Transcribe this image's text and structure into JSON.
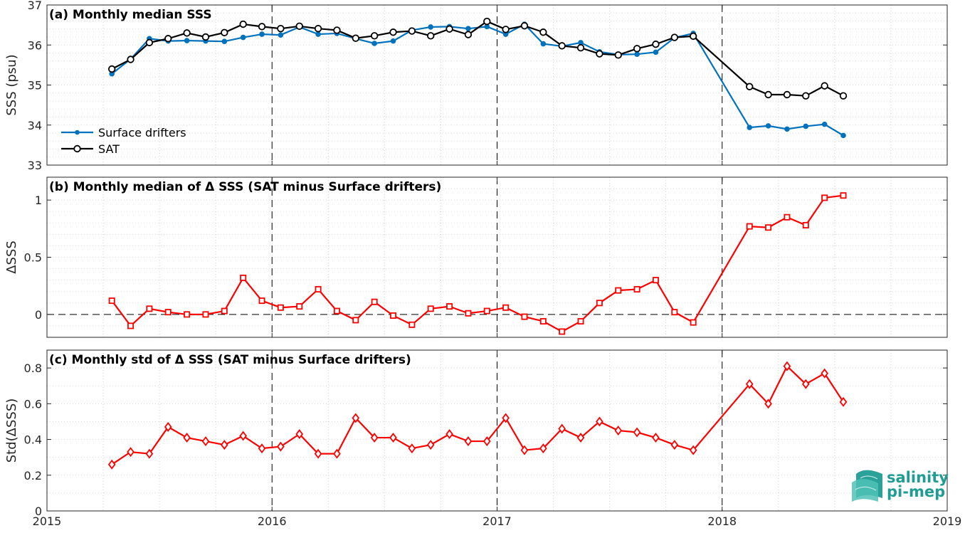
{
  "chart_data": [
    {
      "type": "line",
      "title": "(a) Monthly median SSS",
      "xlabel": "",
      "ylabel": "SSS (psu)",
      "xlim": [
        "2015-01-01",
        "2019-01-01"
      ],
      "ylim": [
        33,
        37
      ],
      "yticks": [
        33,
        34,
        35,
        36,
        37
      ],
      "grid": "on",
      "legend_position": "lower-left",
      "x": [
        "2015-04",
        "2015-05",
        "2015-06",
        "2015-07",
        "2015-08",
        "2015-09",
        "2015-10",
        "2015-11",
        "2015-12",
        "2016-01",
        "2016-02",
        "2016-03",
        "2016-04",
        "2016-05",
        "2016-06",
        "2016-07",
        "2016-08",
        "2016-09",
        "2016-10",
        "2016-11",
        "2016-12",
        "2017-01",
        "2017-02",
        "2017-03",
        "2017-04",
        "2017-05",
        "2017-06",
        "2017-07",
        "2017-08",
        "2017-09",
        "2017-10",
        "2017-11",
        "2018-02",
        "2018-03",
        "2018-04",
        "2018-05",
        "2018-06",
        "2018-07"
      ],
      "series": [
        {
          "name": "Surface drifters",
          "color": "#0072BD",
          "marker": "dot",
          "values": [
            35.28,
            35.65,
            36.16,
            36.1,
            36.11,
            36.1,
            36.09,
            36.19,
            36.27,
            36.25,
            36.45,
            36.27,
            36.29,
            36.16,
            36.04,
            36.1,
            36.37,
            36.45,
            36.46,
            36.41,
            36.46,
            36.27,
            36.52,
            36.03,
            35.97,
            36.06,
            35.83,
            35.76,
            35.77,
            35.82,
            36.18,
            36.29,
            33.94,
            33.98,
            33.9,
            33.97,
            34.02,
            33.74
          ]
        },
        {
          "name": "SAT",
          "color": "#000000",
          "marker": "circle",
          "values": [
            35.4,
            35.64,
            36.06,
            36.16,
            36.3,
            36.2,
            36.31,
            36.52,
            36.46,
            36.41,
            36.47,
            36.41,
            36.37,
            36.17,
            36.23,
            36.32,
            36.35,
            36.23,
            36.4,
            36.26,
            36.59,
            36.39,
            36.48,
            36.32,
            35.98,
            35.93,
            35.78,
            35.75,
            35.91,
            36.02,
            36.19,
            36.22,
            34.96,
            34.76,
            34.76,
            34.73,
            34.98,
            34.73
          ]
        }
      ]
    },
    {
      "type": "line",
      "title": "(b) Monthly median of Δ SSS (SAT minus Surface drifters)",
      "xlabel": "",
      "ylabel": "ΔSSS",
      "xlim": [
        "2015-01-01",
        "2019-01-01"
      ],
      "ylim": [
        -0.2,
        1.2
      ],
      "yticks": [
        0,
        0.5,
        1
      ],
      "ytick_labels": [
        "0",
        "0.5",
        "1"
      ],
      "grid": "on",
      "zero_line": true,
      "x": [
        "2015-04",
        "2015-05",
        "2015-06",
        "2015-07",
        "2015-08",
        "2015-09",
        "2015-10",
        "2015-11",
        "2015-12",
        "2016-01",
        "2016-02",
        "2016-03",
        "2016-04",
        "2016-05",
        "2016-06",
        "2016-07",
        "2016-08",
        "2016-09",
        "2016-10",
        "2016-11",
        "2016-12",
        "2017-01",
        "2017-02",
        "2017-03",
        "2017-04",
        "2017-05",
        "2017-06",
        "2017-07",
        "2017-08",
        "2017-09",
        "2017-10",
        "2017-11",
        "2018-02",
        "2018-03",
        "2018-04",
        "2018-05",
        "2018-06",
        "2018-07"
      ],
      "series": [
        {
          "color": "#FF0000",
          "marker": "square",
          "values": [
            0.12,
            -0.1,
            0.05,
            0.02,
            0.0,
            0.0,
            0.03,
            0.32,
            0.12,
            0.06,
            0.07,
            0.22,
            0.03,
            -0.05,
            0.11,
            -0.01,
            -0.09,
            0.05,
            0.07,
            0.01,
            0.03,
            0.06,
            -0.02,
            -0.06,
            -0.15,
            -0.06,
            0.1,
            0.21,
            0.22,
            0.3,
            0.02,
            -0.07,
            0.77,
            0.76,
            0.85,
            0.78,
            1.02,
            1.04
          ]
        }
      ]
    },
    {
      "type": "line",
      "title": "(c) Monthly std of Δ SSS (SAT minus Surface drifters)",
      "xlabel": "",
      "ylabel": "Std(ΔSSS)",
      "xlim": [
        "2015-01-01",
        "2019-01-01"
      ],
      "ylim": [
        0,
        0.9
      ],
      "yticks": [
        0,
        0.2,
        0.4,
        0.6,
        0.8
      ],
      "ytick_labels": [
        "0",
        "0.2",
        "0.4",
        "0.6",
        "0.8"
      ],
      "xticks": [
        "2015-01-01",
        "2016-01-01",
        "2017-01-01",
        "2018-01-01",
        "2019-01-01"
      ],
      "xtick_labels": [
        "2015",
        "2016",
        "2017",
        "2018",
        "2019"
      ],
      "grid": "on",
      "x": [
        "2015-04",
        "2015-05",
        "2015-06",
        "2015-07",
        "2015-08",
        "2015-09",
        "2015-10",
        "2015-11",
        "2015-12",
        "2016-01",
        "2016-02",
        "2016-03",
        "2016-04",
        "2016-05",
        "2016-06",
        "2016-07",
        "2016-08",
        "2016-09",
        "2016-10",
        "2016-11",
        "2016-12",
        "2017-01",
        "2017-02",
        "2017-03",
        "2017-04",
        "2017-05",
        "2017-06",
        "2017-07",
        "2017-08",
        "2017-09",
        "2017-10",
        "2017-11",
        "2018-02",
        "2018-03",
        "2018-04",
        "2018-05",
        "2018-06",
        "2018-07"
      ],
      "series": [
        {
          "color": "#FF0000",
          "marker": "diamond",
          "values": [
            0.26,
            0.33,
            0.32,
            0.47,
            0.41,
            0.39,
            0.37,
            0.42,
            0.35,
            0.36,
            0.43,
            0.32,
            0.32,
            0.52,
            0.41,
            0.41,
            0.35,
            0.37,
            0.43,
            0.39,
            0.39,
            0.52,
            0.34,
            0.35,
            0.46,
            0.41,
            0.5,
            0.45,
            0.44,
            0.41,
            0.37,
            0.34,
            0.71,
            0.6,
            0.81,
            0.71,
            0.77,
            0.61
          ]
        }
      ]
    }
  ],
  "logo": {
    "line1": "salinity",
    "line2": "pi-mep",
    "color": "#1f9d93"
  }
}
